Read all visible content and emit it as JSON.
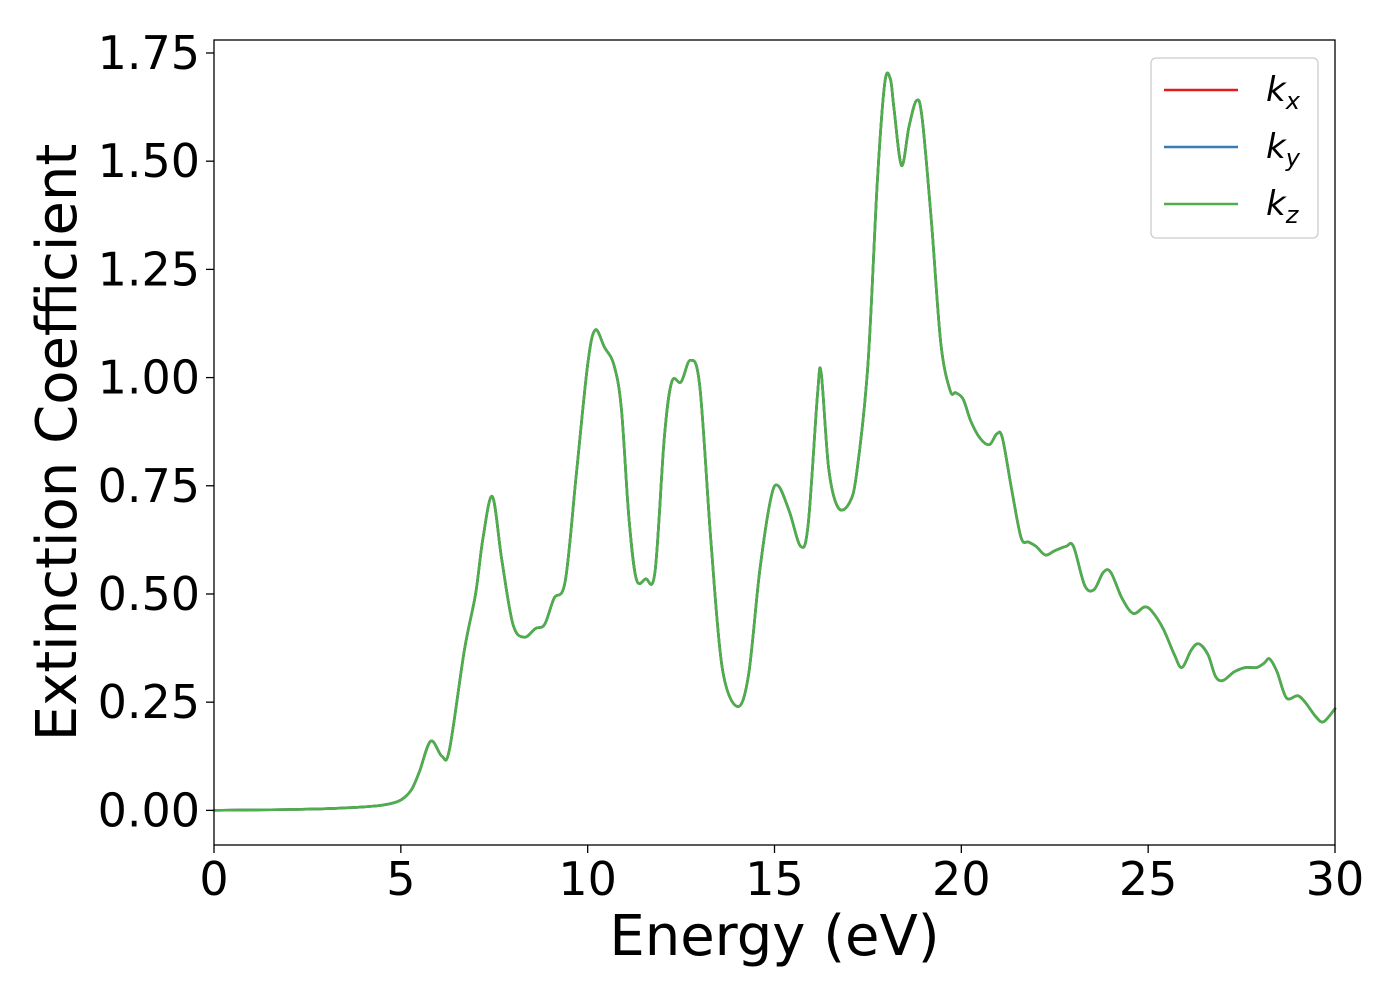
{
  "chart_data": {
    "type": "line",
    "title": "",
    "xlabel": "Energy (eV)",
    "ylabel": "Extinction Coefficient",
    "xlim": [
      0,
      30
    ],
    "ylim": [
      -0.08,
      1.78
    ],
    "x_ticks": [
      0,
      5,
      10,
      15,
      20,
      25,
      30
    ],
    "x_tick_labels": [
      "0",
      "5",
      "10",
      "15",
      "20",
      "25",
      "30"
    ],
    "y_ticks": [
      0,
      0.25,
      0.5,
      0.75,
      1.0,
      1.25,
      1.5,
      1.75
    ],
    "y_tick_labels": [
      "0.00",
      "0.25",
      "0.50",
      "0.75",
      "1.00",
      "1.25",
      "1.50",
      "1.75"
    ],
    "grid": false,
    "legend_position": "top-right",
    "series": [
      {
        "name": "k_x",
        "label_base": "k",
        "label_sub": "x",
        "color": "#e41a1c",
        "x": [
          0,
          1,
          2,
          3,
          4,
          4.5,
          4.9,
          5.1,
          5.3,
          5.5,
          5.8,
          6.1,
          6.3,
          6.7,
          7.0,
          7.2,
          7.45,
          7.7,
          8.0,
          8.3,
          8.6,
          8.85,
          9.1,
          9.4,
          9.7,
          10.0,
          10.2,
          10.45,
          10.7,
          10.9,
          11.1,
          11.3,
          11.55,
          11.8,
          12.05,
          12.25,
          12.5,
          12.75,
          13.0,
          13.3,
          13.6,
          14.0,
          14.3,
          14.6,
          14.9,
          15.1,
          15.4,
          15.7,
          15.9,
          16.15,
          16.25,
          16.45,
          16.7,
          17.0,
          17.2,
          17.5,
          17.75,
          17.95,
          18.1,
          18.2,
          18.4,
          18.6,
          18.8,
          18.95,
          19.2,
          19.45,
          19.7,
          19.85,
          20.05,
          20.25,
          20.5,
          20.75,
          20.95,
          21.1,
          21.35,
          21.6,
          21.8,
          22.0,
          22.25,
          22.5,
          22.8,
          23.0,
          23.3,
          23.55,
          23.8,
          24.0,
          24.3,
          24.6,
          24.9,
          25.1,
          25.4,
          25.7,
          25.9,
          26.15,
          26.35,
          26.6,
          26.8,
          27.0,
          27.3,
          27.6,
          27.9,
          28.1,
          28.25,
          28.45,
          28.7,
          29.0,
          29.2,
          29.5,
          29.7,
          30.0
        ],
        "y": [
          0.0,
          0.001,
          0.002,
          0.004,
          0.008,
          0.012,
          0.02,
          0.03,
          0.05,
          0.09,
          0.16,
          0.125,
          0.14,
          0.37,
          0.5,
          0.63,
          0.725,
          0.58,
          0.43,
          0.4,
          0.42,
          0.43,
          0.49,
          0.53,
          0.78,
          1.03,
          1.11,
          1.07,
          1.03,
          0.93,
          0.68,
          0.535,
          0.535,
          0.55,
          0.86,
          0.99,
          0.99,
          1.04,
          0.98,
          0.62,
          0.33,
          0.24,
          0.31,
          0.55,
          0.72,
          0.75,
          0.69,
          0.61,
          0.66,
          0.96,
          1.01,
          0.79,
          0.7,
          0.71,
          0.78,
          1.03,
          1.45,
          1.68,
          1.69,
          1.62,
          1.49,
          1.58,
          1.64,
          1.6,
          1.36,
          1.08,
          0.97,
          0.965,
          0.95,
          0.9,
          0.86,
          0.845,
          0.87,
          0.86,
          0.74,
          0.63,
          0.62,
          0.61,
          0.59,
          0.6,
          0.61,
          0.61,
          0.52,
          0.51,
          0.55,
          0.55,
          0.49,
          0.455,
          0.47,
          0.46,
          0.42,
          0.36,
          0.33,
          0.37,
          0.385,
          0.36,
          0.31,
          0.3,
          0.32,
          0.33,
          0.33,
          0.34,
          0.35,
          0.32,
          0.26,
          0.265,
          0.25,
          0.215,
          0.205,
          0.235
        ]
      },
      {
        "name": "k_y",
        "label_base": "k",
        "label_sub": "y",
        "color": "#377eb8",
        "x": [
          0,
          1,
          2,
          3,
          4,
          4.5,
          4.9,
          5.1,
          5.3,
          5.5,
          5.8,
          6.1,
          6.3,
          6.7,
          7.0,
          7.2,
          7.45,
          7.7,
          8.0,
          8.3,
          8.6,
          8.85,
          9.1,
          9.4,
          9.7,
          10.0,
          10.2,
          10.45,
          10.7,
          10.9,
          11.1,
          11.3,
          11.55,
          11.8,
          12.05,
          12.25,
          12.5,
          12.75,
          13.0,
          13.3,
          13.6,
          14.0,
          14.3,
          14.6,
          14.9,
          15.1,
          15.4,
          15.7,
          15.9,
          16.15,
          16.25,
          16.45,
          16.7,
          17.0,
          17.2,
          17.5,
          17.75,
          17.95,
          18.1,
          18.2,
          18.4,
          18.6,
          18.8,
          18.95,
          19.2,
          19.45,
          19.7,
          19.85,
          20.05,
          20.25,
          20.5,
          20.75,
          20.95,
          21.1,
          21.35,
          21.6,
          21.8,
          22.0,
          22.25,
          22.5,
          22.8,
          23.0,
          23.3,
          23.55,
          23.8,
          24.0,
          24.3,
          24.6,
          24.9,
          25.1,
          25.4,
          25.7,
          25.9,
          26.15,
          26.35,
          26.6,
          26.8,
          27.0,
          27.3,
          27.6,
          27.9,
          28.1,
          28.25,
          28.45,
          28.7,
          29.0,
          29.2,
          29.5,
          29.7,
          30.0
        ],
        "y": [
          0.0,
          0.001,
          0.002,
          0.004,
          0.008,
          0.012,
          0.02,
          0.03,
          0.05,
          0.09,
          0.16,
          0.125,
          0.14,
          0.37,
          0.5,
          0.63,
          0.725,
          0.58,
          0.43,
          0.4,
          0.42,
          0.43,
          0.49,
          0.53,
          0.78,
          1.03,
          1.11,
          1.07,
          1.03,
          0.93,
          0.68,
          0.535,
          0.535,
          0.55,
          0.86,
          0.99,
          0.99,
          1.04,
          0.98,
          0.62,
          0.33,
          0.24,
          0.31,
          0.55,
          0.72,
          0.75,
          0.69,
          0.61,
          0.66,
          0.96,
          1.01,
          0.79,
          0.7,
          0.71,
          0.78,
          1.03,
          1.45,
          1.68,
          1.69,
          1.62,
          1.49,
          1.58,
          1.64,
          1.6,
          1.36,
          1.08,
          0.97,
          0.965,
          0.95,
          0.9,
          0.86,
          0.845,
          0.87,
          0.86,
          0.74,
          0.63,
          0.62,
          0.61,
          0.59,
          0.6,
          0.61,
          0.61,
          0.52,
          0.51,
          0.55,
          0.55,
          0.49,
          0.455,
          0.47,
          0.46,
          0.42,
          0.36,
          0.33,
          0.37,
          0.385,
          0.36,
          0.31,
          0.3,
          0.32,
          0.33,
          0.33,
          0.34,
          0.35,
          0.32,
          0.26,
          0.265,
          0.25,
          0.215,
          0.205,
          0.235
        ]
      },
      {
        "name": "k_z",
        "label_base": "k",
        "label_sub": "z",
        "color": "#4daf4a",
        "x": [
          0,
          1,
          2,
          3,
          4,
          4.5,
          4.9,
          5.1,
          5.3,
          5.5,
          5.8,
          6.1,
          6.3,
          6.7,
          7.0,
          7.2,
          7.45,
          7.7,
          8.0,
          8.3,
          8.6,
          8.85,
          9.1,
          9.4,
          9.7,
          10.0,
          10.2,
          10.45,
          10.7,
          10.9,
          11.1,
          11.3,
          11.55,
          11.8,
          12.05,
          12.25,
          12.5,
          12.75,
          13.0,
          13.3,
          13.6,
          14.0,
          14.3,
          14.6,
          14.9,
          15.1,
          15.4,
          15.7,
          15.9,
          16.15,
          16.25,
          16.45,
          16.7,
          17.0,
          17.2,
          17.5,
          17.75,
          17.95,
          18.1,
          18.2,
          18.4,
          18.6,
          18.8,
          18.95,
          19.2,
          19.45,
          19.7,
          19.85,
          20.05,
          20.25,
          20.5,
          20.75,
          20.95,
          21.1,
          21.35,
          21.6,
          21.8,
          22.0,
          22.25,
          22.5,
          22.8,
          23.0,
          23.3,
          23.55,
          23.8,
          24.0,
          24.3,
          24.6,
          24.9,
          25.1,
          25.4,
          25.7,
          25.9,
          26.15,
          26.35,
          26.6,
          26.8,
          27.0,
          27.3,
          27.6,
          27.9,
          28.1,
          28.25,
          28.45,
          28.7,
          29.0,
          29.2,
          29.5,
          29.7,
          30.0
        ],
        "y": [
          0.0,
          0.001,
          0.002,
          0.004,
          0.008,
          0.012,
          0.02,
          0.03,
          0.05,
          0.09,
          0.16,
          0.125,
          0.14,
          0.37,
          0.5,
          0.63,
          0.725,
          0.58,
          0.43,
          0.4,
          0.42,
          0.43,
          0.49,
          0.53,
          0.78,
          1.03,
          1.11,
          1.07,
          1.03,
          0.93,
          0.68,
          0.535,
          0.535,
          0.55,
          0.86,
          0.99,
          0.99,
          1.04,
          0.98,
          0.62,
          0.33,
          0.24,
          0.31,
          0.55,
          0.72,
          0.75,
          0.69,
          0.61,
          0.66,
          0.96,
          1.01,
          0.79,
          0.7,
          0.71,
          0.78,
          1.03,
          1.45,
          1.68,
          1.69,
          1.62,
          1.49,
          1.58,
          1.64,
          1.6,
          1.36,
          1.08,
          0.97,
          0.965,
          0.95,
          0.9,
          0.86,
          0.845,
          0.87,
          0.86,
          0.74,
          0.63,
          0.62,
          0.61,
          0.59,
          0.6,
          0.61,
          0.61,
          0.52,
          0.51,
          0.55,
          0.55,
          0.49,
          0.455,
          0.47,
          0.46,
          0.42,
          0.36,
          0.33,
          0.37,
          0.385,
          0.36,
          0.31,
          0.3,
          0.32,
          0.33,
          0.33,
          0.34,
          0.35,
          0.32,
          0.26,
          0.265,
          0.25,
          0.215,
          0.205,
          0.235
        ]
      }
    ]
  }
}
